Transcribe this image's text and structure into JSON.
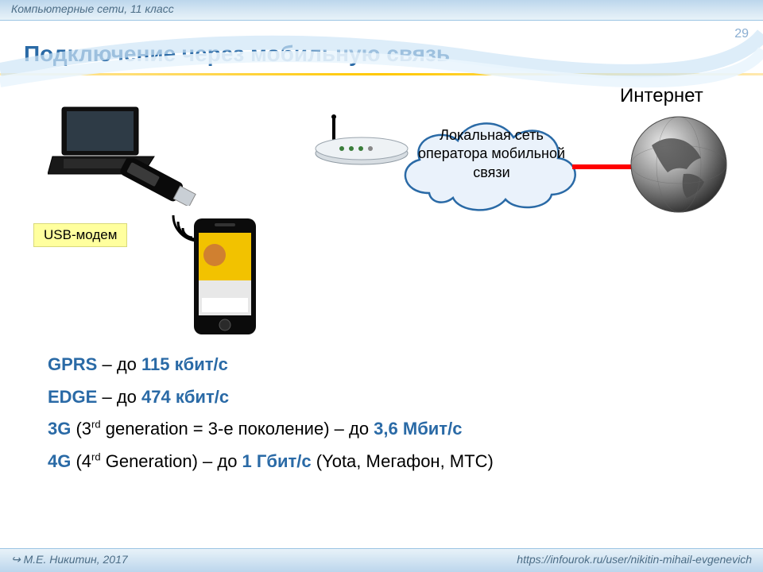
{
  "header": {
    "course": "Компьютерные сети, 11 класс"
  },
  "page_number": "29",
  "title": "Подключение через мобильную связь",
  "diagram": {
    "usb_label": "USB-модем",
    "cloud_text": "Локальная сеть оператора мобильной связи",
    "internet_label": "Интернет",
    "colors": {
      "cloud_stroke": "#2a6aa6",
      "cloud_fill": "#eaf2fb",
      "connection_line": "#ff0000",
      "usb_label_bg": "#ffff9e",
      "accent_blue": "#2a6aa6",
      "title_underline": "#ffc800"
    }
  },
  "specs": [
    {
      "tech": "GPRS",
      "mid": " – до ",
      "val": "115 кбит/с",
      "tail": ""
    },
    {
      "tech": "EDGE",
      "mid": " – до ",
      "val": "474 кбит/с",
      "tail": ""
    },
    {
      "tech": "3G",
      "mid_html": " (3<sup>rd</sup> generation = 3-е поколение) – до ",
      "val": "3,6 Мбит/c",
      "tail": ""
    },
    {
      "tech": "4G",
      "mid_html": " (4<sup>rd</sup> Generation) – до ",
      "val": "1 Гбит/с",
      "tail": " (Yota, Мегафон, МТС)"
    }
  ],
  "footer": {
    "left": "↪ М.Е. Никитин, 2017",
    "right": "https://infourok.ru/user/nikitin-mihail-evgenevich"
  }
}
